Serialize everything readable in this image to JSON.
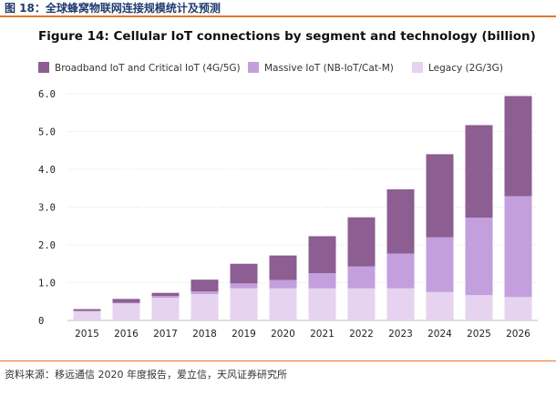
{
  "page": {
    "caption": "图 18：全球蜂窝物联网连接规模统计及预测",
    "source": "资料来源：移远通信 2020 年度报告，爱立信，天风证券研究所"
  },
  "colors": {
    "accent_rule": "#e8742a",
    "caption_text": "#1f3b6e"
  },
  "chart_data": {
    "type": "bar",
    "stacked": true,
    "title": "Figure 14: Cellular IoT connections by segment and technology (billion)",
    "xlabel": "",
    "ylabel": "",
    "categories": [
      "2015",
      "2016",
      "2017",
      "2018",
      "2019",
      "2020",
      "2021",
      "2022",
      "2023",
      "2024",
      "2025",
      "2026"
    ],
    "ylim": [
      0,
      6
    ],
    "yticks": [
      0,
      1,
      2,
      3,
      4,
      5,
      6
    ],
    "ytick_labels": [
      "0",
      "1.0",
      "2.0",
      "3.0",
      "4.0",
      "5.0",
      "6.0"
    ],
    "grid": true,
    "legend_position": "top",
    "series": [
      {
        "name": "Legacy (2G/3G)",
        "color": "#e6d3ef",
        "values": [
          0.25,
          0.45,
          0.6,
          0.7,
          0.85,
          0.85,
          0.85,
          0.85,
          0.85,
          0.75,
          0.67,
          0.62
        ]
      },
      {
        "name": "Massive IoT (NB-IoT/Cat-M)",
        "color": "#c39fdd",
        "values": [
          0.0,
          0.02,
          0.05,
          0.07,
          0.13,
          0.22,
          0.4,
          0.58,
          0.92,
          1.45,
          2.05,
          2.67
        ]
      },
      {
        "name": "Broadband IoT and Critical IoT (4G/5G)",
        "color": "#8c5e91",
        "values": [
          0.05,
          0.1,
          0.08,
          0.31,
          0.52,
          0.65,
          0.98,
          1.3,
          1.7,
          2.2,
          2.45,
          2.65
        ]
      }
    ],
    "legend_order": [
      "Broadband IoT and Critical IoT (4G/5G)",
      "Massive IoT (NB-IoT/Cat-M)",
      "Legacy (2G/3G)"
    ]
  }
}
